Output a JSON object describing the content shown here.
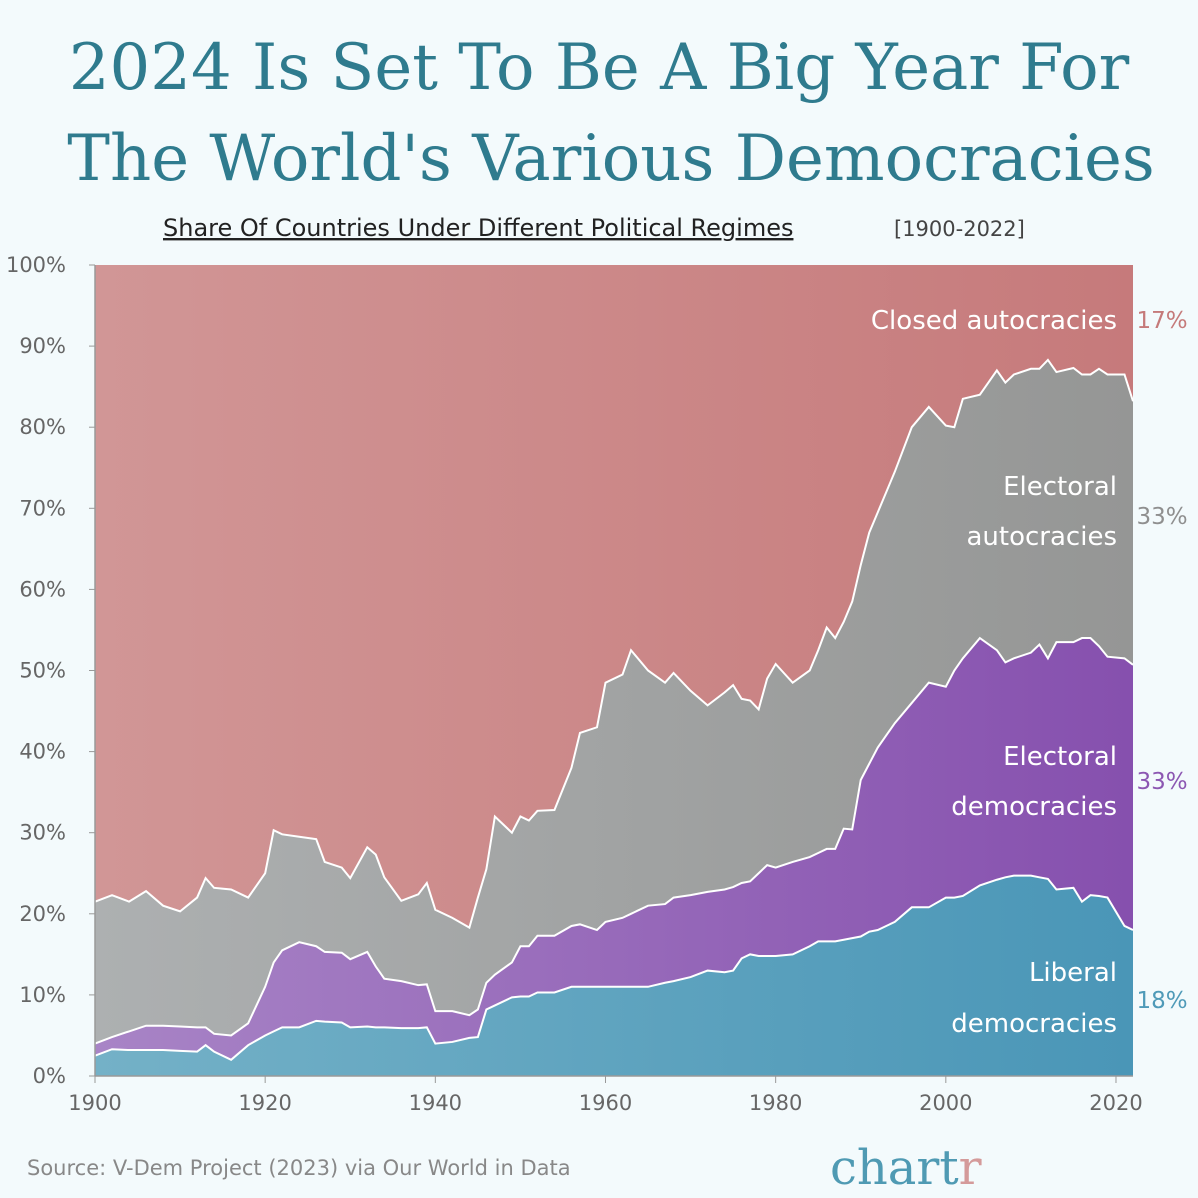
{
  "title_line1": "2024 Is Set To Be A Big Year For",
  "title_line2": "The World's Various Democracies",
  "subtitle": "Share Of Countries Under Different Political Regimes",
  "subtitle_range": "[1900-2022]",
  "source": "Source: V-Dem Project (2023) via Our World in Data",
  "logo": {
    "main": "chart",
    "accent": "r",
    "main_color": "#4f9ab3",
    "accent_color": "#d49a9a"
  },
  "chart_data": {
    "type": "area",
    "stacked": true,
    "title": "Share Of Countries Under Different Political Regimes [1900-2022]",
    "xlim": [
      1900,
      2022
    ],
    "ylim": [
      0,
      100
    ],
    "x_ticks": [
      "1900",
      "1920",
      "1940",
      "1960",
      "1980",
      "2000",
      "2020"
    ],
    "y_ticks": [
      "0%",
      "10%",
      "20%",
      "30%",
      "40%",
      "50%",
      "60%",
      "70%",
      "80%",
      "90%",
      "100%"
    ],
    "grid": false,
    "x": [
      1900,
      1902,
      1904,
      1906,
      1908,
      1910,
      1912,
      1913,
      1914,
      1916,
      1918,
      1920,
      1921,
      1922,
      1924,
      1926,
      1927,
      1929,
      1930,
      1932,
      1933,
      1934,
      1936,
      1938,
      1939,
      1940,
      1942,
      1944,
      1945,
      1946,
      1947,
      1949,
      1950,
      1951,
      1952,
      1954,
      1956,
      1957,
      1959,
      1960,
      1962,
      1963,
      1965,
      1967,
      1968,
      1970,
      1972,
      1974,
      1975,
      1976,
      1977,
      1978,
      1979,
      1980,
      1982,
      1984,
      1985,
      1986,
      1987,
      1988,
      1989,
      1990,
      1991,
      1992,
      1994,
      1996,
      1998,
      2000,
      2001,
      2002,
      2004,
      2006,
      2007,
      2008,
      2010,
      2011,
      2012,
      2013,
      2015,
      2016,
      2017,
      2018,
      2019,
      2021,
      2022
    ],
    "series": [
      {
        "name": "Liberal democracies",
        "label_lines": [
          "Liberal",
          "democracies"
        ],
        "end_label": "18%",
        "color": "#4f9ab8",
        "values": [
          2.5,
          3.3,
          3.2,
          3.2,
          3.2,
          3.1,
          3,
          3.8,
          3,
          2,
          3.8,
          5,
          5.5,
          6,
          6,
          6.8,
          6.7,
          6.6,
          6,
          6.1,
          6,
          6,
          5.9,
          5.9,
          6,
          4,
          4.2,
          4.7,
          4.8,
          8.2,
          8.7,
          9.7,
          9.8,
          9.8,
          10.3,
          10.3,
          11,
          11,
          11,
          11,
          11,
          11,
          11,
          11.5,
          11.7,
          12.2,
          13,
          12.8,
          13,
          14.5,
          15,
          14.8,
          14.8,
          14.8,
          15,
          16,
          16.6,
          16.6,
          16.6,
          16.8,
          17,
          17.2,
          17.8,
          18,
          19,
          20.8,
          20.8,
          22,
          22,
          22.2,
          23.5,
          24.2,
          24.5,
          24.7,
          24.7,
          24.5,
          24.3,
          23,
          23.2,
          21.5,
          22.3,
          22.2,
          22,
          18.5,
          18
        ]
      },
      {
        "name": "Electoral democracies",
        "label_lines": [
          "Electoral",
          "democracies"
        ],
        "end_label": "33%",
        "color": "#8c57b2",
        "values": [
          1.5,
          1.5,
          2.3,
          3,
          3,
          3,
          3,
          2.2,
          2.2,
          3,
          2.7,
          6,
          8.5,
          9.5,
          10.5,
          9.2,
          8.6,
          8.6,
          8.4,
          9.2,
          7.5,
          6,
          5.8,
          5.3,
          5.3,
          4,
          3.8,
          2.8,
          3.4,
          3.3,
          3.8,
          4.3,
          6.2,
          6.2,
          7,
          7,
          7.5,
          7.7,
          7,
          8,
          8.5,
          9,
          10,
          9.7,
          10.3,
          10.1,
          9.7,
          10.2,
          10.3,
          9.3,
          9,
          10.2,
          11.2,
          10.9,
          11.4,
          11,
          10.9,
          11.4,
          11.4,
          13.7,
          13.4,
          19.3,
          20.7,
          22.5,
          24.5,
          25.2,
          27.7,
          26,
          28,
          29.3,
          30.5,
          28.3,
          26.5,
          26.8,
          27.5,
          28.7,
          27.2,
          30.5,
          30.3,
          32.5,
          31.7,
          30.8,
          29.7,
          33,
          32.7
        ]
      },
      {
        "name": "Electoral autocracies",
        "label_lines": [
          "Electoral",
          "autocracies"
        ],
        "end_label": "33%",
        "color": "#8f8f8f",
        "values": [
          17.5,
          17.5,
          16,
          16.6,
          14.8,
          14.2,
          16,
          18.4,
          18,
          18,
          15.5,
          14,
          16.3,
          14.3,
          13,
          13.2,
          11.1,
          10.5,
          10,
          12.9,
          13.8,
          12.5,
          9.9,
          11.2,
          12.5,
          12.5,
          11.5,
          10.8,
          13.8,
          14,
          19.5,
          16,
          16,
          15.5,
          15.4,
          15.5,
          19.5,
          23.6,
          25,
          29.5,
          30,
          32.5,
          29,
          27.3,
          27.7,
          25.2,
          23,
          24.3,
          24.9,
          22.7,
          22.3,
          20.2,
          23,
          25.1,
          22.1,
          23,
          25,
          27.3,
          26,
          25.5,
          28.1,
          26.5,
          28.5,
          29,
          31,
          34,
          34,
          32.2,
          30,
          32,
          30,
          34.5,
          34.5,
          35,
          35,
          34,
          36.8,
          33.3,
          33.8,
          32.5,
          32.5,
          34.2,
          34.8,
          35,
          32.5
        ]
      },
      {
        "name": "Closed autocracies",
        "label_lines": [
          "Closed autocracies"
        ],
        "end_label": "17%",
        "color": "#c57a7a",
        "values": [
          78.5,
          77.7,
          78.5,
          77.2,
          79,
          79.7,
          78,
          75.6,
          76.8,
          77,
          78,
          75,
          69.7,
          70.2,
          70.5,
          70.8,
          73.6,
          74.3,
          75.6,
          71.8,
          72.7,
          75.5,
          78.4,
          77.6,
          76.2,
          79.5,
          80.5,
          81.7,
          78,
          74.5,
          68,
          70,
          68,
          68.5,
          67.3,
          67.2,
          62,
          57.7,
          57,
          51.5,
          50.5,
          47.5,
          50,
          51.5,
          50.3,
          52.5,
          54.3,
          52.7,
          51.8,
          53.5,
          53.7,
          54.8,
          51,
          49.2,
          51.5,
          50,
          47.5,
          44.7,
          46,
          44,
          41.5,
          37,
          33,
          30.5,
          25.5,
          20,
          17.5,
          19.8,
          20,
          16.5,
          16,
          13,
          14.5,
          13.5,
          12.8,
          12.8,
          11.7,
          13.2,
          12.7,
          13.5,
          13.5,
          12.8,
          13.5,
          13.5,
          16.8
        ]
      }
    ]
  }
}
